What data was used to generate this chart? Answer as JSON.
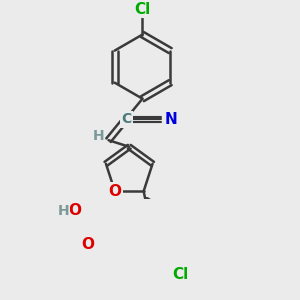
{
  "bg_color": "#ebebeb",
  "bond_color": "#3a3a3a",
  "bond_width": 1.8,
  "atom_colors": {
    "C": "#4a7a7a",
    "N": "#0000dd",
    "O": "#dd0000",
    "Cl": "#00aa00",
    "H": "#7a9a9a"
  },
  "font_size_atom": 11,
  "font_size_small": 9
}
